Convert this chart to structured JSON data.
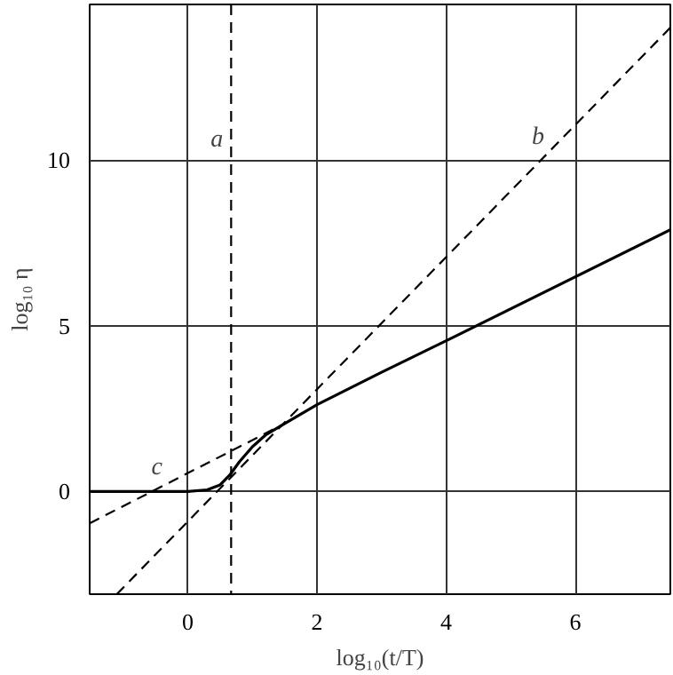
{
  "chart_data": {
    "type": "line",
    "xlabel": "log₁₀(t/T)",
    "ylabel": "log₁₀ η",
    "xlim": [
      -1.52,
      7.47
    ],
    "ylim": [
      -3.1,
      14.7
    ],
    "xticks": [
      0,
      2,
      4,
      6
    ],
    "yticks": [
      0,
      5,
      10
    ],
    "grid": true,
    "marker": "none",
    "series": [
      {
        "color": "#000000",
        "line_style": "solid",
        "x": [
          -1.52,
          0,
          0.3,
          0.5,
          0.65,
          0.8,
          1.0,
          1.2,
          1.5,
          2.0,
          3.0,
          4.0,
          7.47
        ],
        "values": [
          0,
          0,
          0.05,
          0.2,
          0.5,
          0.9,
          1.35,
          1.7,
          2.05,
          2.62,
          3.6,
          4.55,
          7.9
        ]
      },
      {
        "name": "b",
        "color": "#000000",
        "line_style": "dashed",
        "x": [
          -1.1,
          7.47
        ],
        "values": [
          -3.1,
          14.0
        ]
      },
      {
        "name": "c",
        "color": "#000000",
        "line_style": "dashed",
        "x": [
          -1.52,
          1.45
        ],
        "values": [
          -0.96,
          2.0
        ]
      }
    ],
    "ref_lines": [
      {
        "axis": "x",
        "value": 0.67,
        "label": "a",
        "color": "#000000",
        "line_style": "dashed"
      }
    ]
  }
}
